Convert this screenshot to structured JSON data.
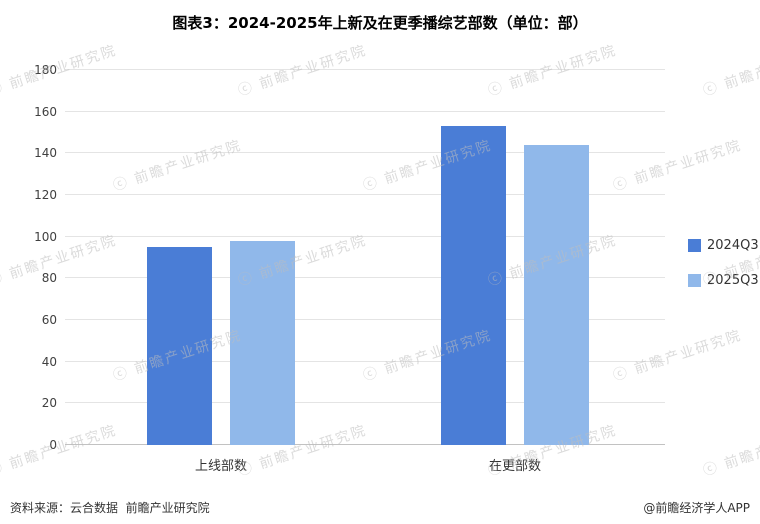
{
  "title": "图表3：2024-2025年上新及在更季播综艺部数（单位：部）",
  "chart_data": {
    "type": "bar",
    "categories": [
      "上线部数",
      "在更部数"
    ],
    "series": [
      {
        "name": "2024Q3",
        "color": "#4A7DD6",
        "values": [
          95,
          153
        ]
      },
      {
        "name": "2025Q3",
        "color": "#90B8EA",
        "values": [
          98,
          144
        ]
      }
    ],
    "xlabel": "",
    "ylabel": "",
    "ylim": [
      0,
      180
    ],
    "ytick_interval": 20,
    "grid": true,
    "legend_position": "right"
  },
  "footer": {
    "source_note": "资料来源：云合数据  前瞻产业研究院",
    "credit": "@前瞻经济学人APP"
  },
  "watermark": {
    "text": "前瞻产业研究院",
    "symbol": "ⓒ"
  }
}
